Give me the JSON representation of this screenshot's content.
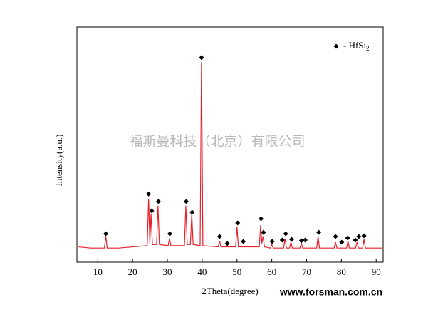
{
  "chart_data": {
    "type": "line",
    "x_label": "2Theta(degree)",
    "y_label": "Intensity(a.u.)",
    "watermark": "福斯曼科技（北京）有限公司",
    "website": "www.forsman.com.cn",
    "xlim": [
      4,
      92
    ],
    "ylim": [
      0,
      100
    ],
    "xticks": [
      10,
      20,
      30,
      40,
      50,
      60,
      70,
      80,
      90
    ],
    "series": [
      {
        "color": "#e8202a",
        "x": [
          4.5,
          8,
          11.9,
          12.3,
          12.7,
          16,
          20,
          24.2,
          24.6,
          24.95,
          25.3,
          25.7,
          26.9,
          27.3,
          27.7,
          30.2,
          30.6,
          31,
          34.9,
          35.3,
          35.7,
          36.6,
          37,
          37.4,
          39.4,
          39.8,
          40.2,
          44.6,
          45,
          45.4,
          49.6,
          50,
          50.4,
          56.4,
          56.8,
          57.15,
          57.5,
          57.9,
          59.6,
          60,
          60.4,
          63.4,
          63.8,
          64.2,
          65.1,
          65.5,
          65.9,
          68.1,
          68.5,
          68.9,
          72.9,
          73.3,
          73.7,
          77.9,
          78.3,
          78.7,
          81.5,
          81.9,
          82.3,
          84.1,
          84.5,
          84.9,
          86.1,
          86.5,
          86.9,
          91.8
        ],
        "values": [
          6.5,
          6,
          6,
          11,
          6,
          6,
          6.5,
          7,
          27,
          8,
          20.6,
          7.5,
          7.5,
          24,
          7.5,
          7,
          10,
          7,
          7,
          24,
          7.5,
          7.5,
          20.6,
          7.5,
          7,
          85,
          7,
          6.5,
          9,
          6.5,
          6.5,
          15,
          6.5,
          6.5,
          15.8,
          8,
          11,
          6.5,
          6,
          7.5,
          6,
          6,
          10,
          6,
          6,
          8.5,
          6,
          6,
          8,
          6,
          6,
          11,
          6,
          6,
          8.5,
          6,
          6,
          9,
          6,
          6,
          8.5,
          6,
          6,
          9.7,
          6,
          6
        ]
      }
    ],
    "markers": {
      "name": "- HfSi",
      "name_subscript": "2",
      "color": "#000000",
      "x": [
        12.3,
        24.6,
        25.5,
        27.4,
        30.7,
        35.4,
        37.1,
        39.8,
        45,
        47.2,
        50.2,
        51.8,
        56.9,
        57.6,
        60.1,
        63,
        64,
        65.7,
        68.5,
        69.6,
        73.5,
        78.3,
        80.1,
        81.8,
        84,
        85,
        86.5
      ],
      "values": [
        12.1,
        29,
        21.8,
        25.8,
        12.1,
        25.8,
        21.2,
        87,
        10.9,
        7.9,
        16.7,
        8.8,
        18.5,
        12.7,
        8.8,
        9.4,
        12.1,
        9.7,
        9.1,
        9.4,
        12.7,
        10.9,
        8.5,
        10.3,
        9.4,
        10.9,
        11.2
      ]
    }
  }
}
